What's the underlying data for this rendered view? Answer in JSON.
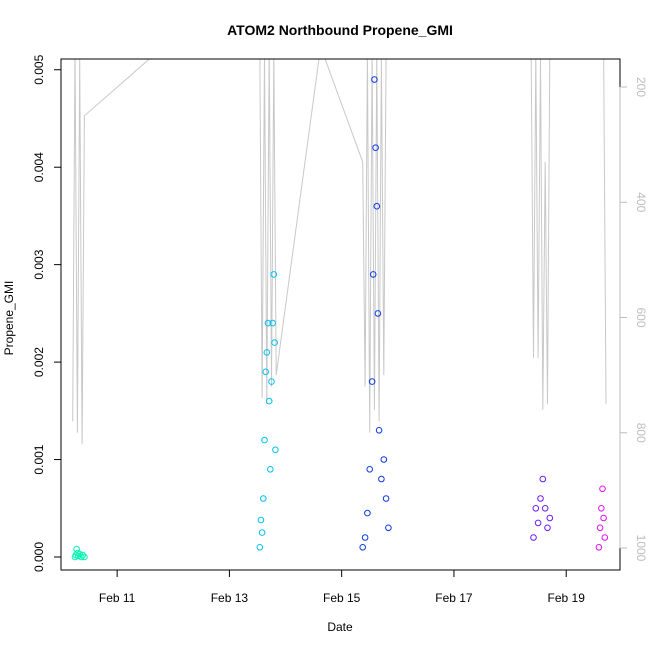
{
  "chart_data": {
    "type": "scatter",
    "title": "ATOM2 Northbound Propene_GMI",
    "xlabel": "Date",
    "ylabel": "Propene_GMI",
    "x_date_ticks": [
      "2020-02-11",
      "2020-02-13",
      "2020-02-15",
      "2020-02-17",
      "2020-02-19"
    ],
    "x_tick_labels": [
      "Feb 11",
      "Feb 13",
      "Feb 15",
      "Feb 17",
      "Feb 19"
    ],
    "xlim": [
      "2020-02-10 00:00",
      "2020-02-19 23:00"
    ],
    "ylim": [
      0,
      0.0051
    ],
    "y_ticks": [
      0,
      0.001,
      0.002,
      0.003,
      0.004,
      0.005
    ],
    "y_tick_labels": [
      "0.000",
      "0.001",
      "0.002",
      "0.003",
      "0.004",
      "0.005"
    ],
    "y2_ticks": [
      200,
      400,
      600,
      800,
      1000
    ],
    "y2_tick_labels": [
      "200",
      "400",
      "600",
      "800",
      "1000"
    ],
    "y2lim": [
      1045,
      150
    ],
    "grid": false,
    "marker": "open-circle",
    "series": [
      {
        "color": "#00f5b0",
        "points": [
          [
            "2020-02-10 06:00",
            0.0
          ],
          [
            "2020-02-10 06:20",
            2e-05
          ],
          [
            "2020-02-10 06:40",
            8e-05
          ],
          [
            "2020-02-10 07:00",
            4e-05
          ],
          [
            "2020-02-10 07:20",
            1e-05
          ],
          [
            "2020-02-10 08:00",
            3e-05
          ],
          [
            "2020-02-10 08:40",
            0.0
          ],
          [
            "2020-02-10 09:20",
            2e-05
          ],
          [
            "2020-02-10 10:00",
            0.0
          ]
        ]
      },
      {
        "color": "#00c0f0",
        "points": [
          [
            "2020-02-13 13:00",
            0.0001
          ],
          [
            "2020-02-13 13:30",
            0.00038
          ],
          [
            "2020-02-13 14:00",
            0.00025
          ],
          [
            "2020-02-13 14:30",
            0.0006
          ],
          [
            "2020-02-13 15:00",
            0.0012
          ],
          [
            "2020-02-13 15:30",
            0.0019
          ],
          [
            "2020-02-13 16:00",
            0.0021
          ],
          [
            "2020-02-13 16:30",
            0.0024
          ],
          [
            "2020-02-13 17:00",
            0.0016
          ],
          [
            "2020-02-13 17:30",
            0.0009
          ],
          [
            "2020-02-13 18:00",
            0.0018
          ],
          [
            "2020-02-13 18:30",
            0.0024
          ],
          [
            "2020-02-13 19:00",
            0.0029
          ],
          [
            "2020-02-13 19:20",
            0.0022
          ],
          [
            "2020-02-13 19:40",
            0.0011
          ]
        ]
      },
      {
        "color": "#0a3ae8",
        "points": [
          [
            "2020-02-15 09:00",
            0.0001
          ],
          [
            "2020-02-15 10:00",
            0.0002
          ],
          [
            "2020-02-15 11:00",
            0.00045
          ],
          [
            "2020-02-15 12:00",
            0.0009
          ],
          [
            "2020-02-15 13:00",
            0.0018
          ],
          [
            "2020-02-15 13:30",
            0.0029
          ],
          [
            "2020-02-15 14:00",
            0.0049
          ],
          [
            "2020-02-15 14:30",
            0.0042
          ],
          [
            "2020-02-15 15:00",
            0.0036
          ],
          [
            "2020-02-15 15:30",
            0.0025
          ],
          [
            "2020-02-15 16:00",
            0.0013
          ],
          [
            "2020-02-15 17:00",
            0.0008
          ],
          [
            "2020-02-15 18:00",
            0.001
          ],
          [
            "2020-02-15 19:00",
            0.0006
          ],
          [
            "2020-02-15 20:00",
            0.0003
          ]
        ]
      },
      {
        "color": "#6a1af5",
        "points": [
          [
            "2020-02-18 10:00",
            0.0002
          ],
          [
            "2020-02-18 11:00",
            0.0005
          ],
          [
            "2020-02-18 12:00",
            0.00035
          ],
          [
            "2020-02-18 13:00",
            0.0006
          ],
          [
            "2020-02-18 14:00",
            0.0008
          ],
          [
            "2020-02-18 15:00",
            0.0005
          ],
          [
            "2020-02-18 16:00",
            0.0003
          ],
          [
            "2020-02-18 17:00",
            0.0004
          ]
        ]
      },
      {
        "color": "#e010f0",
        "points": [
          [
            "2020-02-19 14:00",
            0.0001
          ],
          [
            "2020-02-19 14:30",
            0.0003
          ],
          [
            "2020-02-19 15:00",
            0.0005
          ],
          [
            "2020-02-19 15:30",
            0.0007
          ],
          [
            "2020-02-19 16:00",
            0.0004
          ],
          [
            "2020-02-19 16:30",
            0.0002
          ]
        ]
      }
    ],
    "profile_line": {
      "color": "#c8c8c8",
      "axis": "right",
      "points": [
        [
          "2020-02-10 05:00",
          780
        ],
        [
          "2020-02-10 06:00",
          130
        ],
        [
          "2020-02-10 07:00",
          800
        ],
        [
          "2020-02-10 08:00",
          150
        ],
        [
          "2020-02-10 09:00",
          820
        ],
        [
          "2020-02-10 10:00",
          250
        ],
        [
          "2020-02-11 17:00",
          140
        ],
        [
          "2020-02-13 13:00",
          130
        ],
        [
          "2020-02-13 14:00",
          740
        ],
        [
          "2020-02-13 15:00",
          140
        ],
        [
          "2020-02-13 16:00",
          750
        ],
        [
          "2020-02-13 17:00",
          130
        ],
        [
          "2020-02-13 18:00",
          720
        ],
        [
          "2020-02-13 19:00",
          140
        ],
        [
          "2020-02-13 20:00",
          700
        ],
        [
          "2020-02-14 15:00",
          130
        ],
        [
          "2020-02-15 09:00",
          330
        ],
        [
          "2020-02-15 10:00",
          720
        ],
        [
          "2020-02-15 11:00",
          140
        ],
        [
          "2020-02-15 12:00",
          800
        ],
        [
          "2020-02-15 13:00",
          140
        ],
        [
          "2020-02-15 14:00",
          760
        ],
        [
          "2020-02-15 15:00",
          140
        ],
        [
          "2020-02-15 16:00",
          780
        ],
        [
          "2020-02-15 17:00",
          150
        ],
        [
          "2020-02-15 18:00",
          700
        ],
        [
          "2020-02-15 19:00",
          140
        ],
        [
          "2020-02-18 09:00",
          130
        ],
        [
          "2020-02-18 10:00",
          670
        ],
        [
          "2020-02-18 11:00",
          140
        ],
        [
          "2020-02-18 12:00",
          670
        ],
        [
          "2020-02-18 13:00",
          150
        ],
        [
          "2020-02-18 14:00",
          760
        ],
        [
          "2020-02-18 15:00",
          330
        ],
        [
          "2020-02-18 16:00",
          750
        ],
        [
          "2020-02-18 17:00",
          140
        ],
        [
          "2020-02-19 16:00",
          130
        ],
        [
          "2020-02-19 17:00",
          750
        ]
      ]
    }
  }
}
